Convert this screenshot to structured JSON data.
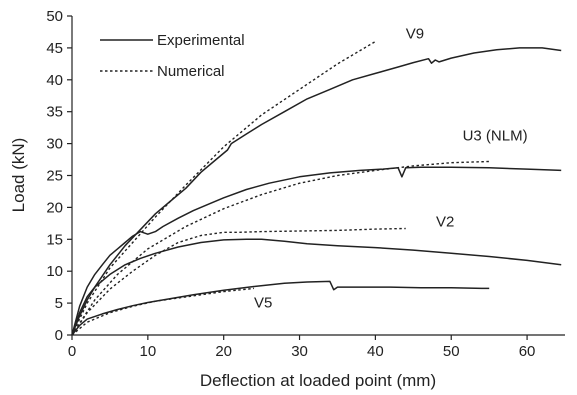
{
  "chart_data": {
    "type": "line",
    "title": "",
    "xlabel": "Deflection at loaded point (mm)",
    "ylabel": "Load (kN)",
    "xlim": [
      0,
      65
    ],
    "ylim": [
      0,
      50
    ],
    "xticks": [
      0,
      10,
      20,
      30,
      40,
      50,
      60
    ],
    "yticks": [
      0,
      5,
      10,
      15,
      20,
      25,
      30,
      35,
      40,
      45,
      50
    ],
    "grid": false,
    "legend": {
      "placement": "top-left",
      "entries": [
        {
          "label": "Experimental",
          "style": "solid"
        },
        {
          "label": "Numerical",
          "style": "dotted"
        }
      ]
    },
    "series_labels": [
      {
        "text": "V9",
        "x": 44,
        "y": 46.5
      },
      {
        "text": "U3 (NLM)",
        "x": 51.5,
        "y": 30.5
      },
      {
        "text": "V2",
        "x": 48,
        "y": 17
      },
      {
        "text": "V5",
        "x": 24,
        "y": 4.3
      }
    ],
    "series": [
      {
        "id": "V9",
        "kind": "Experimental",
        "style": "solid",
        "x": [
          0,
          1,
          2,
          3,
          5,
          7,
          9,
          11,
          13,
          15,
          17,
          19,
          20.5,
          21,
          23,
          25,
          28,
          31,
          34,
          37,
          40,
          43,
          45,
          47,
          47.4,
          47.9,
          48.4,
          50,
          53,
          56,
          59,
          62,
          64.5
        ],
        "y": [
          0,
          3,
          5.5,
          7.5,
          11,
          14,
          16.5,
          19,
          21,
          23,
          25.5,
          27.5,
          29,
          30,
          31.5,
          33,
          35,
          37,
          38.5,
          40,
          41,
          42,
          42.7,
          43.3,
          42.6,
          43.1,
          42.8,
          43.4,
          44.2,
          44.7,
          45,
          45,
          44.6
        ]
      },
      {
        "id": "V9",
        "kind": "Numerical",
        "style": "dotted",
        "x": [
          0,
          2,
          5,
          8,
          11,
          15,
          20,
          25,
          30,
          35,
          40
        ],
        "y": [
          0,
          5,
          10.5,
          14.5,
          18.5,
          23.5,
          29.5,
          34.5,
          38.5,
          42.5,
          46
        ]
      },
      {
        "id": "U3 (NLM)",
        "kind": "Experimental",
        "style": "solid",
        "x": [
          0,
          1,
          2,
          3,
          4,
          5,
          6,
          7,
          8,
          9,
          10,
          11,
          12,
          14,
          16,
          18,
          20,
          23,
          26,
          30,
          34,
          38,
          41,
          43,
          43.5,
          44,
          46,
          50,
          55,
          60,
          64.5
        ],
        "y": [
          0,
          4.5,
          7.5,
          9.5,
          11,
          12.5,
          13.5,
          14.5,
          15.5,
          16.2,
          15.8,
          16.2,
          17,
          18.3,
          19.5,
          20.5,
          21.5,
          22.8,
          23.8,
          24.8,
          25.4,
          25.8,
          26,
          26.2,
          24.8,
          26.2,
          26.3,
          26.3,
          26.2,
          26,
          25.8
        ]
      },
      {
        "id": "U3 (NLM)",
        "kind": "Numerical",
        "style": "dotted",
        "x": [
          0,
          3,
          6,
          10,
          15,
          20,
          25,
          30,
          35,
          40,
          45,
          50,
          55
        ],
        "y": [
          0,
          5.5,
          9.5,
          13.5,
          17,
          19.8,
          22,
          23.8,
          25,
          25.8,
          26.5,
          27,
          27.2
        ]
      },
      {
        "id": "V2",
        "kind": "Experimental",
        "style": "solid",
        "x": [
          0,
          1,
          2,
          3,
          5,
          7,
          9,
          11,
          14,
          17,
          20,
          23,
          25,
          28,
          31,
          35,
          40,
          45,
          50,
          55,
          60,
          64.5
        ],
        "y": [
          0,
          3.5,
          6,
          7.5,
          9.5,
          11,
          12,
          12.8,
          13.8,
          14.5,
          14.9,
          15,
          15,
          14.7,
          14.3,
          14,
          13.7,
          13.3,
          12.8,
          12.3,
          11.7,
          11
        ]
      },
      {
        "id": "V2",
        "kind": "Numerical",
        "style": "dotted",
        "x": [
          0,
          2,
          5,
          8,
          11,
          14,
          17,
          20,
          22,
          25,
          30,
          35,
          40,
          44
        ],
        "y": [
          0,
          3.5,
          7.2,
          10,
          12.5,
          14.5,
          15.6,
          16.1,
          16.1,
          16.2,
          16.3,
          16.4,
          16.6,
          16.7
        ]
      },
      {
        "id": "V5",
        "kind": "Experimental",
        "style": "solid",
        "x": [
          0,
          1,
          2,
          4,
          6,
          8,
          10,
          13,
          16,
          20,
          24,
          28,
          31,
          34,
          34.5,
          35,
          38,
          42,
          46,
          50,
          54,
          55
        ],
        "y": [
          0,
          1.5,
          2.5,
          3.3,
          4,
          4.6,
          5.1,
          5.7,
          6.3,
          7,
          7.6,
          8.1,
          8.3,
          8.4,
          7.1,
          7.5,
          7.5,
          7.5,
          7.4,
          7.4,
          7.3,
          7.3
        ]
      },
      {
        "id": "V5",
        "kind": "Numerical",
        "style": "dotted",
        "x": [
          0,
          2,
          5,
          8,
          11,
          14,
          17,
          20,
          24
        ],
        "y": [
          0,
          2,
          3.5,
          4.5,
          5.3,
          5.8,
          6.3,
          6.8,
          7.3
        ]
      }
    ]
  }
}
